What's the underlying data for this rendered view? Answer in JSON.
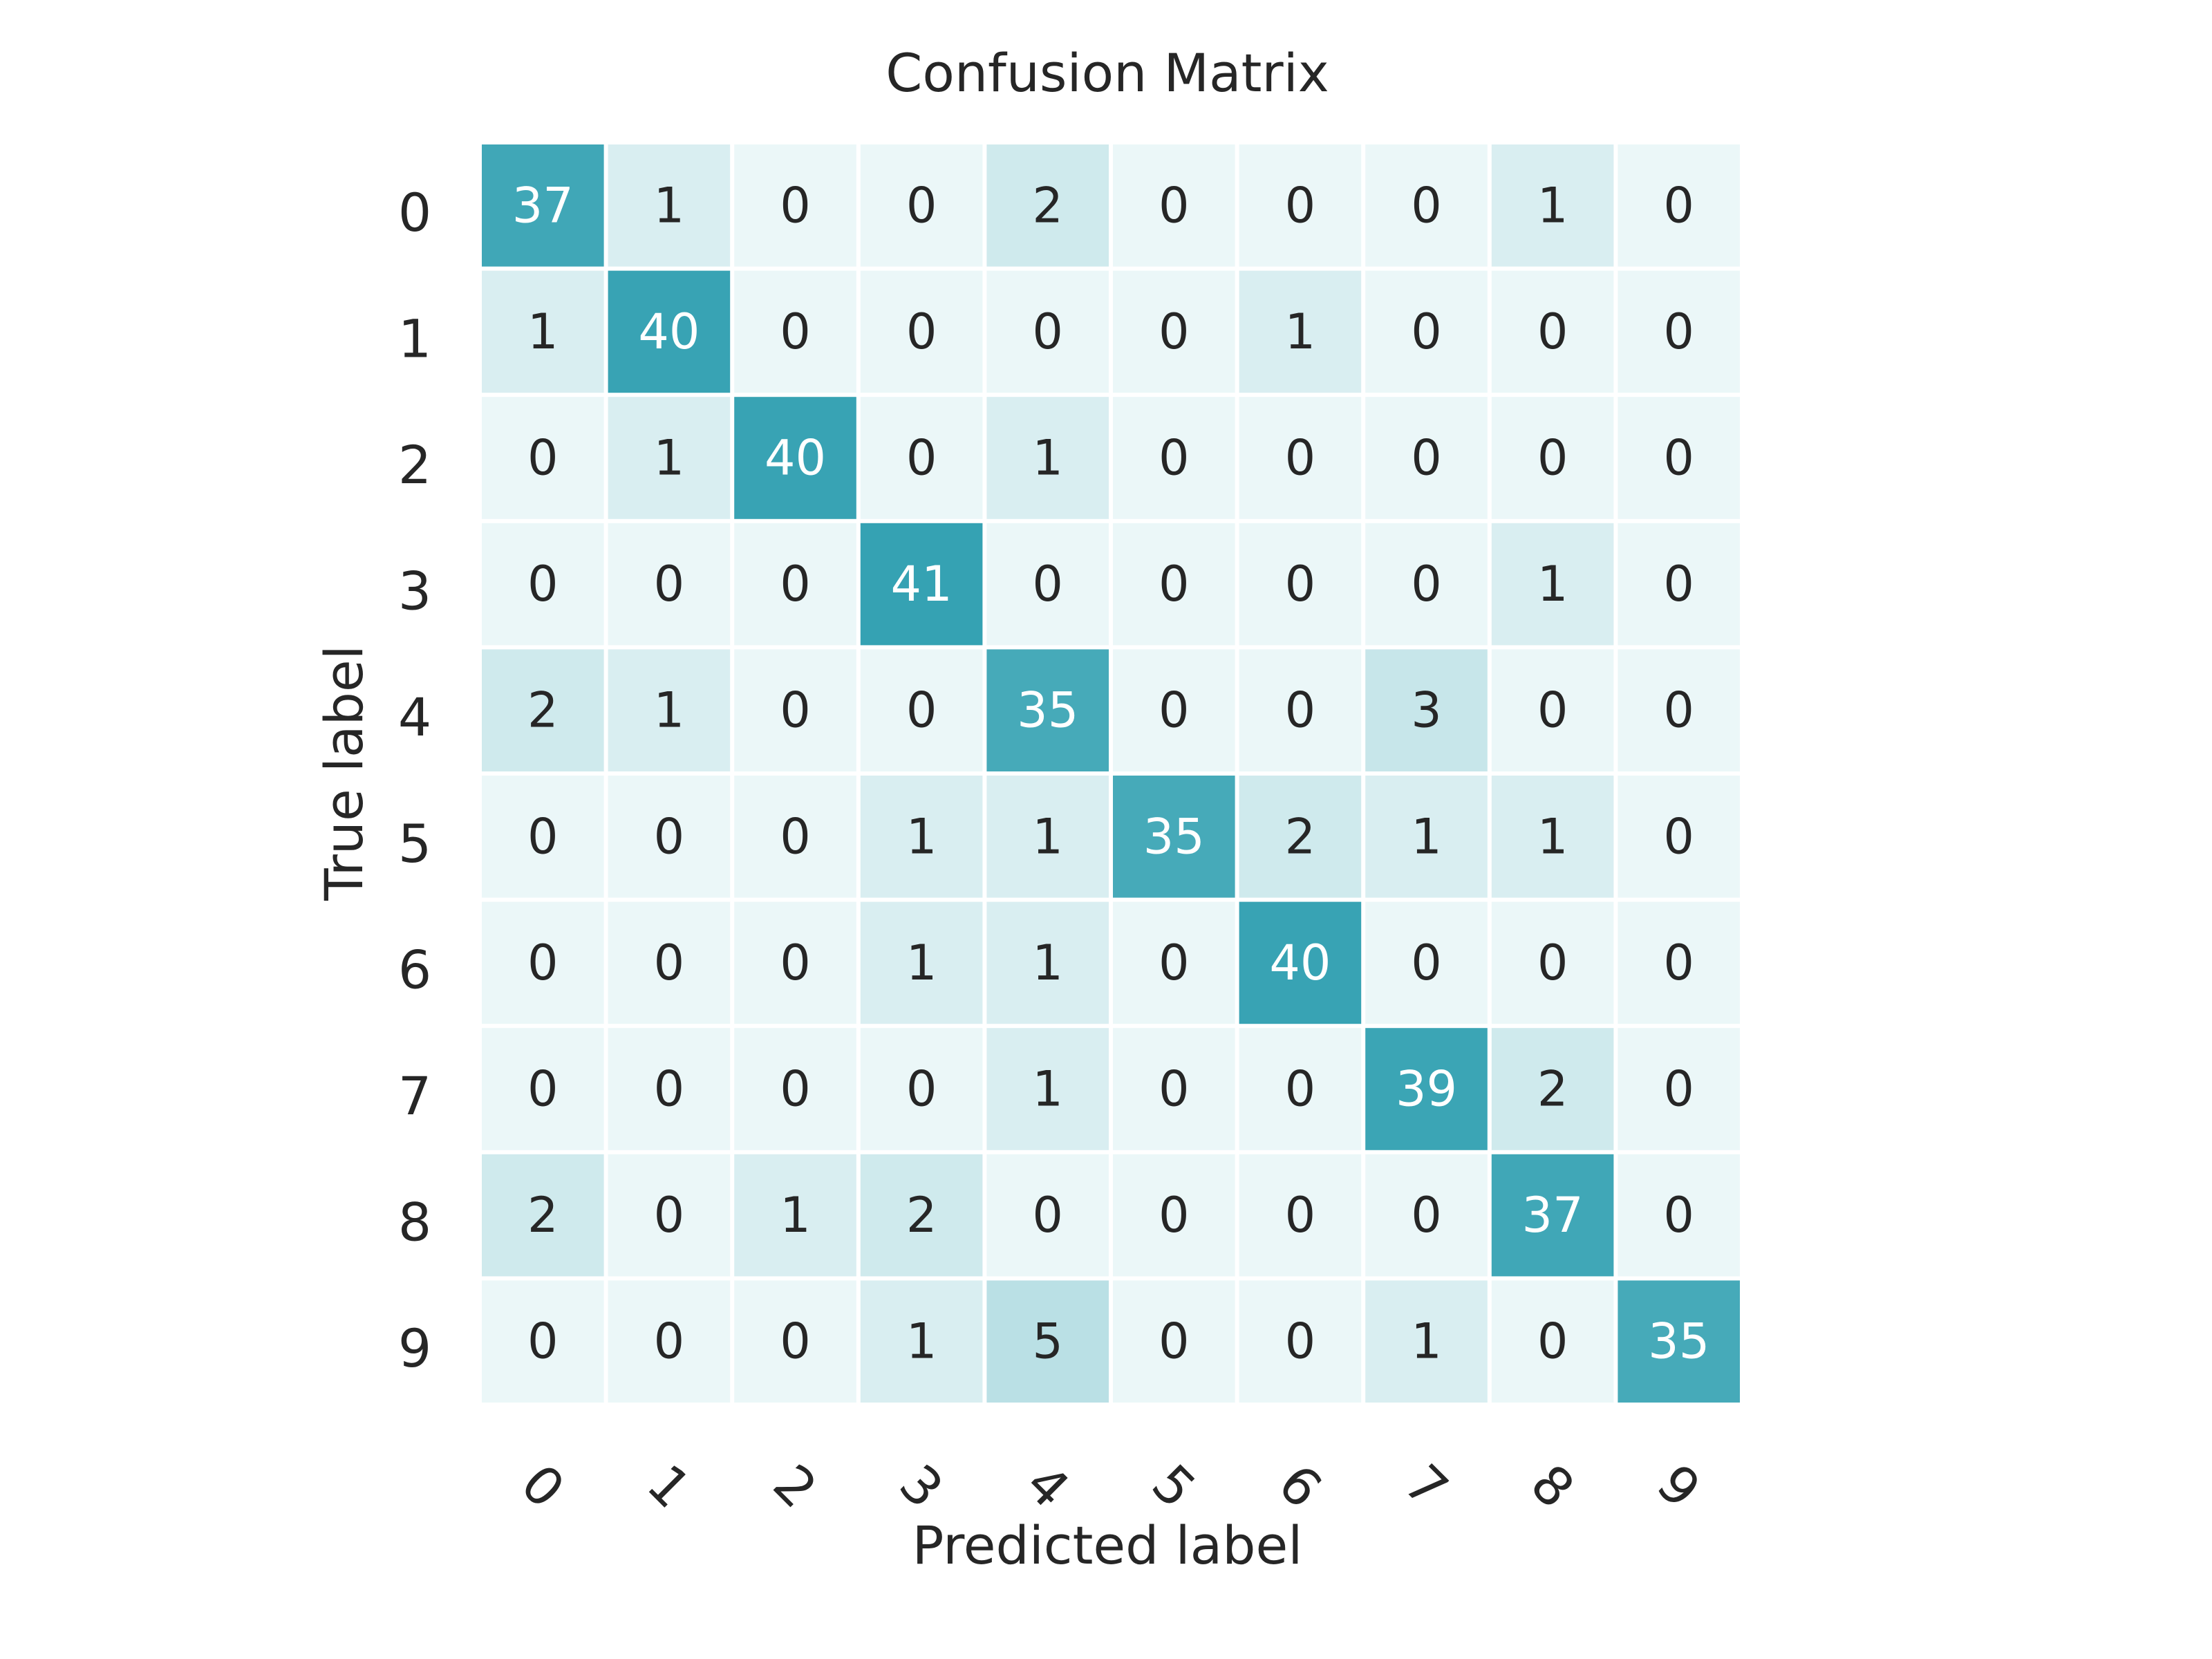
{
  "chart_data": {
    "type": "heatmap",
    "title": "Confusion Matrix",
    "xlabel": "Predicted label",
    "ylabel": "True label",
    "x_categories": [
      "0",
      "1",
      "2",
      "3",
      "4",
      "5",
      "6",
      "7",
      "8",
      "9"
    ],
    "y_categories": [
      "0",
      "1",
      "2",
      "3",
      "4",
      "5",
      "6",
      "7",
      "8",
      "9"
    ],
    "values": [
      [
        37,
        1,
        0,
        0,
        2,
        0,
        0,
        0,
        1,
        0
      ],
      [
        1,
        40,
        0,
        0,
        0,
        0,
        1,
        0,
        0,
        0
      ],
      [
        0,
        1,
        40,
        0,
        1,
        0,
        0,
        0,
        0,
        0
      ],
      [
        0,
        0,
        0,
        41,
        0,
        0,
        0,
        0,
        1,
        0
      ],
      [
        2,
        1,
        0,
        0,
        35,
        0,
        0,
        3,
        0,
        0
      ],
      [
        0,
        0,
        0,
        1,
        1,
        35,
        2,
        1,
        1,
        0
      ],
      [
        0,
        0,
        0,
        1,
        1,
        0,
        40,
        0,
        0,
        0
      ],
      [
        0,
        0,
        0,
        0,
        1,
        0,
        0,
        39,
        2,
        0
      ],
      [
        2,
        0,
        1,
        2,
        0,
        0,
        0,
        0,
        37,
        0
      ],
      [
        0,
        0,
        0,
        1,
        5,
        0,
        0,
        1,
        0,
        35
      ]
    ],
    "colorbar": false,
    "grid": false,
    "colors": {
      "low": "#ebf7f8",
      "high": "#35a2b3",
      "cell_border": "#ffffff",
      "text_dark": "#262626",
      "text_light": "#ffffff"
    }
  }
}
